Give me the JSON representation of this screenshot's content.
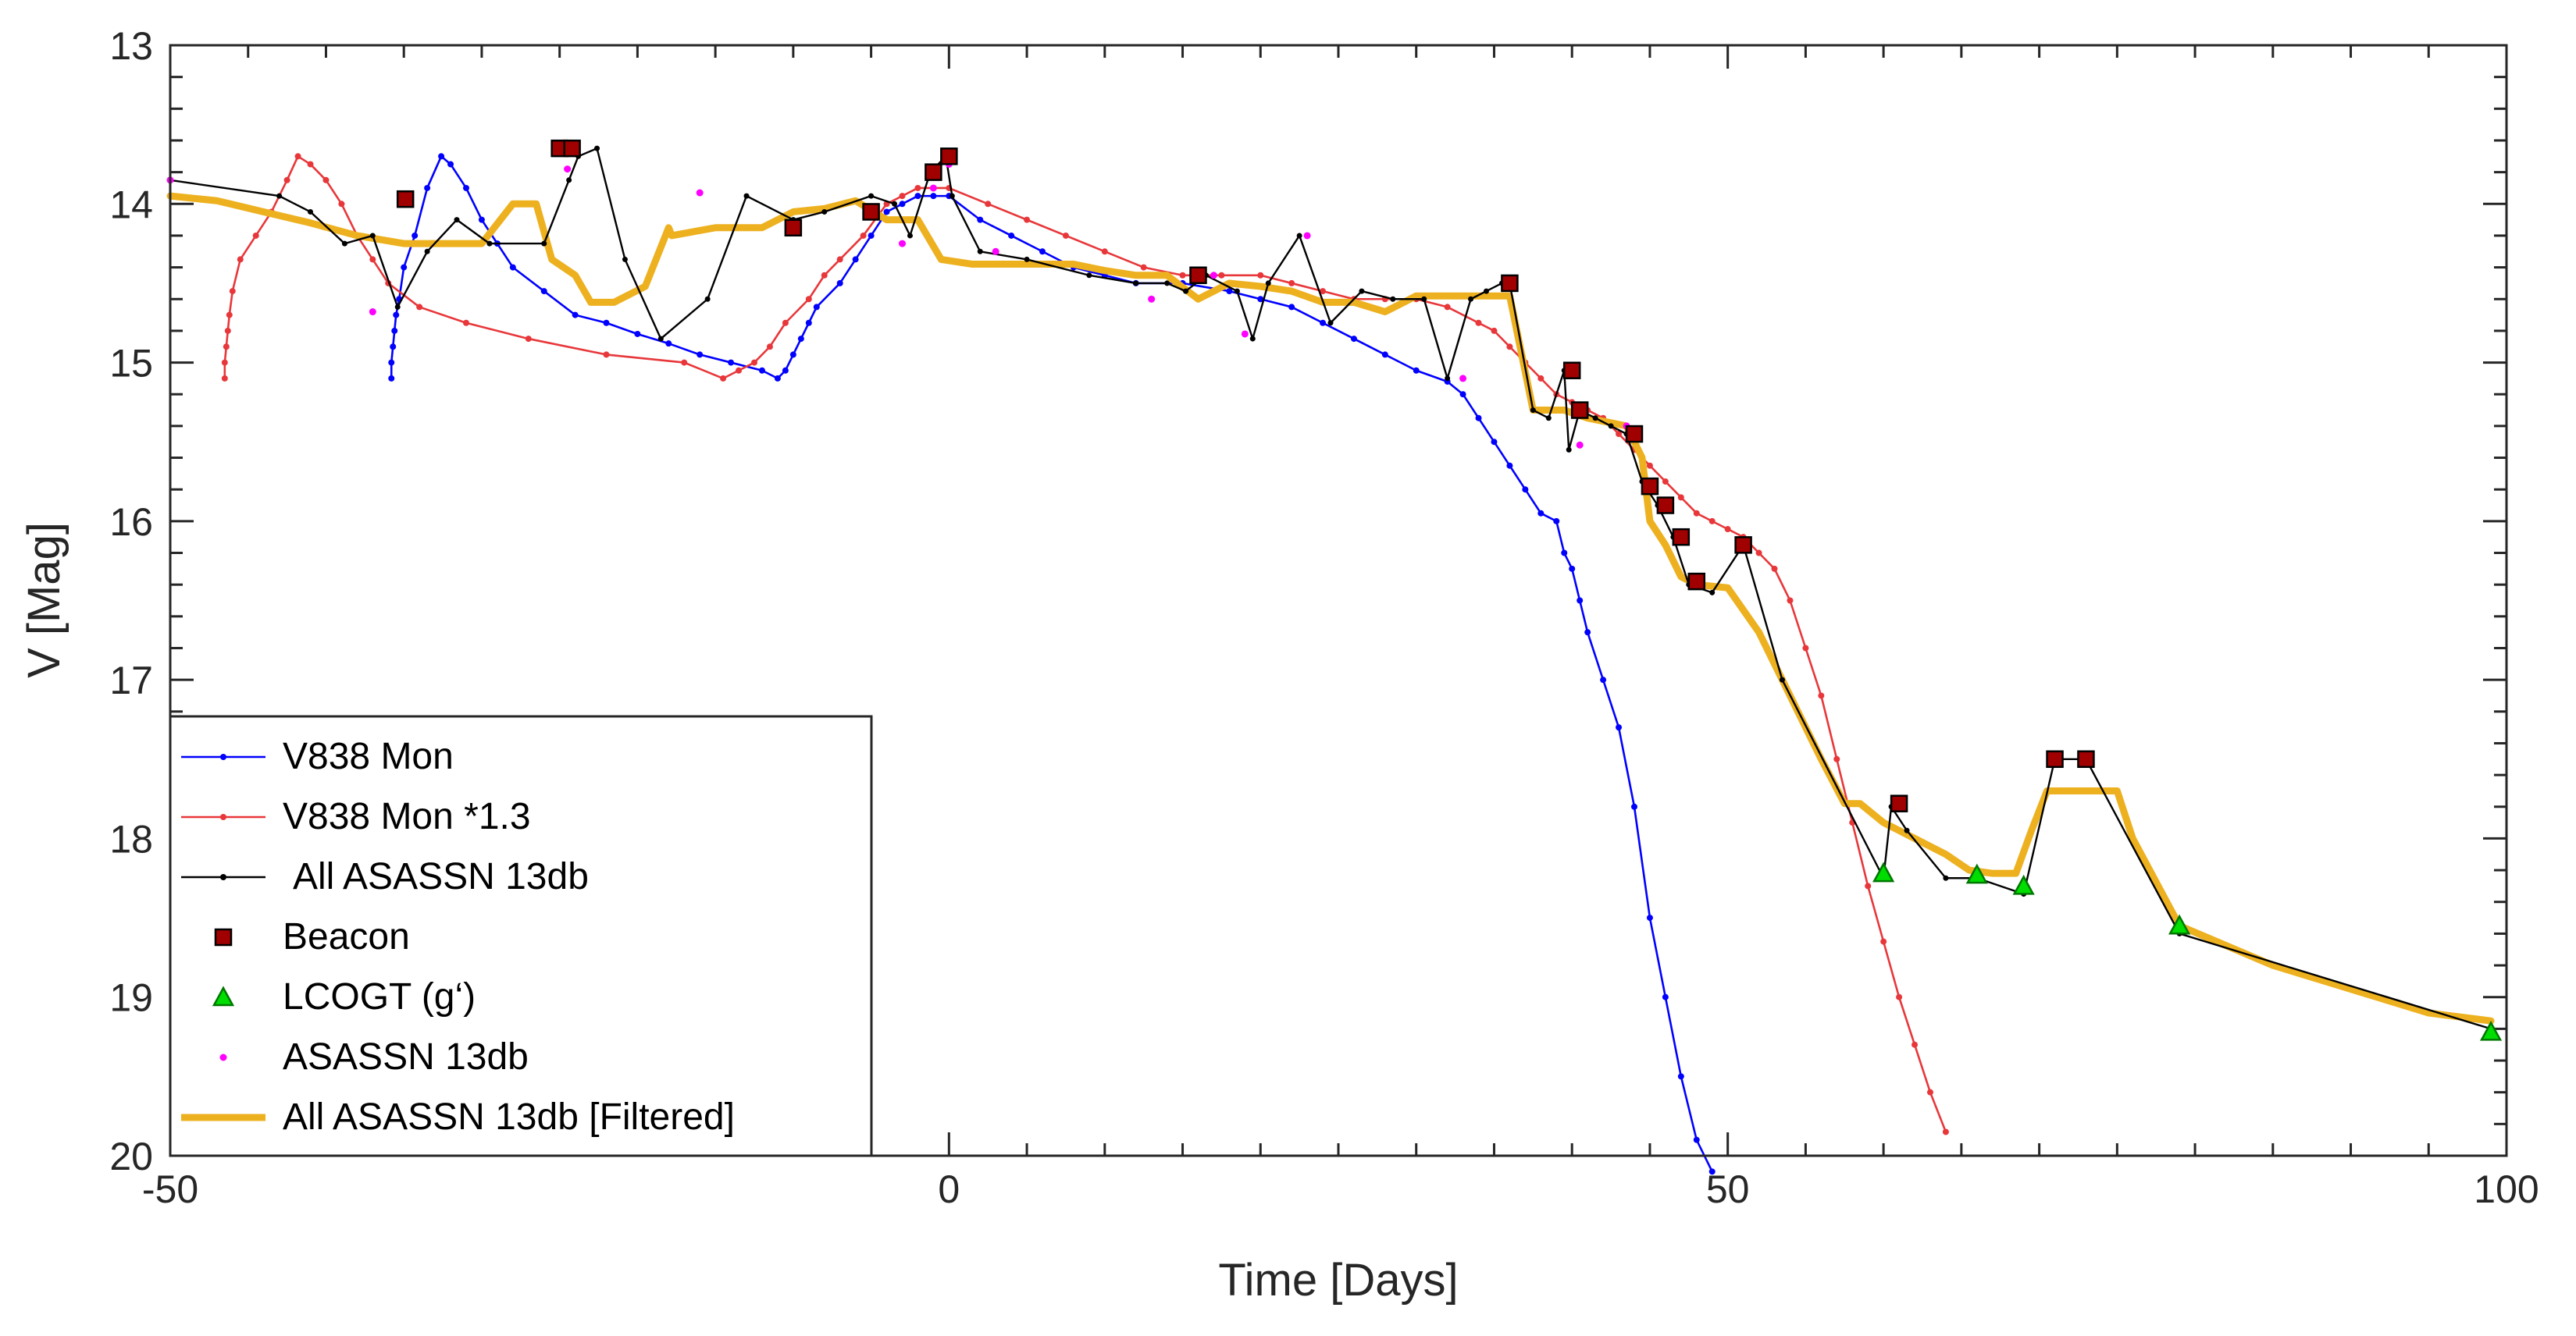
{
  "chart_data": {
    "type": "line",
    "title": "",
    "xlabel": "Time [Days]",
    "ylabel": "V [Mag]",
    "xlim": [
      -50,
      100
    ],
    "ylim": [
      13,
      20
    ],
    "y_reversed": true,
    "x_ticks": [
      -50,
      0,
      50,
      100
    ],
    "y_ticks": [
      13,
      14,
      15,
      16,
      17,
      18,
      19,
      20
    ],
    "grid": false,
    "legend_position": "bottom-left",
    "colors": {
      "v838": "#0000ff",
      "v838_scaled": "#e8373a",
      "all_asassn": "#000000",
      "beacon_fill": "#a00000",
      "lcogt_fill": "#00dd00",
      "asassn_points": "#ff00ff",
      "filtered": "#edb120"
    },
    "series": [
      {
        "name": "V838 Mon",
        "key": "v838",
        "style": "line-dot",
        "x": [
          -35.8,
          -35.8,
          -35.7,
          -35.6,
          -35.5,
          -35.3,
          -35.0,
          -34.3,
          -33.5,
          -32.6,
          -32.0,
          -31.0,
          -30.0,
          -29.0,
          -28.0,
          -26.0,
          -24.0,
          -22.0,
          -20.0,
          -18.0,
          -16.0,
          -14.0,
          -12.0,
          -11.0,
          -10.5,
          -10.0,
          -9.5,
          -9.0,
          -8.5,
          -7.0,
          -6.0,
          -5.0,
          -4.0,
          -3.0,
          -2.0,
          -1.0,
          0.0,
          2.0,
          4.0,
          6.0,
          8.0,
          10.0,
          12.0,
          15.0,
          18.0,
          20.0,
          22.0,
          24.0,
          26.0,
          28.0,
          30.0,
          32.0,
          33.0,
          34.0,
          35.0,
          36.0,
          37.0,
          38.0,
          39.0,
          39.5,
          40.0,
          40.5,
          41.0,
          42.0,
          43.0,
          44.0,
          45.0,
          46.0,
          47.0,
          48.0,
          49.0
        ],
        "y": [
          15.1,
          15.0,
          14.9,
          14.8,
          14.7,
          14.6,
          14.4,
          14.2,
          13.9,
          13.7,
          13.75,
          13.9,
          14.1,
          14.25,
          14.4,
          14.55,
          14.7,
          14.75,
          14.82,
          14.88,
          14.95,
          15.0,
          15.05,
          15.1,
          15.05,
          14.95,
          14.85,
          14.75,
          14.65,
          14.5,
          14.35,
          14.2,
          14.05,
          14.0,
          13.95,
          13.95,
          13.95,
          14.1,
          14.2,
          14.3,
          14.4,
          14.45,
          14.5,
          14.5,
          14.55,
          14.6,
          14.65,
          14.75,
          14.85,
          14.95,
          15.05,
          15.12,
          15.2,
          15.35,
          15.5,
          15.65,
          15.8,
          15.95,
          16.0,
          16.2,
          16.3,
          16.5,
          16.7,
          17.0,
          17.3,
          17.8,
          18.5,
          19.0,
          19.5,
          19.9,
          20.1
        ]
      },
      {
        "name": "V838 Mon *1.3",
        "key": "v838_scaled",
        "style": "line-dot",
        "x": [
          -46.5,
          -46.5,
          -46.4,
          -46.3,
          -46.2,
          -46.0,
          -45.5,
          -44.5,
          -43.5,
          -42.5,
          -41.8,
          -41.0,
          -40.0,
          -39.0,
          -38.0,
          -37.0,
          -36.0,
          -34.0,
          -31.0,
          -27.0,
          -22.0,
          -17.0,
          -14.5,
          -13.5,
          -12.5,
          -11.5,
          -10.5,
          -9.0,
          -8.0,
          -7.0,
          -5.5,
          -4.0,
          -3.0,
          -2.0,
          0.0,
          2.5,
          5.0,
          7.5,
          10.0,
          12.5,
          15.0,
          17.5,
          20.0,
          22.0,
          24.0,
          26.0,
          28.0,
          30.0,
          32.0,
          34.0,
          35.0,
          36.0,
          37.0,
          38.0,
          39.0,
          40.0,
          41.0,
          42.0,
          43.0,
          44.0,
          45.0,
          46.0,
          47.0,
          48.0,
          49.0,
          50.0,
          51.0,
          52.0,
          53.0,
          54.0,
          55.0,
          56.0,
          57.0,
          58.0,
          59.0,
          60.0,
          61.0,
          62.0,
          63.0,
          64.0
        ],
        "y": [
          15.1,
          15.0,
          14.9,
          14.8,
          14.7,
          14.55,
          14.35,
          14.2,
          14.05,
          13.85,
          13.7,
          13.75,
          13.85,
          14.0,
          14.2,
          14.35,
          14.5,
          14.65,
          14.75,
          14.85,
          14.95,
          15.0,
          15.1,
          15.05,
          15.0,
          14.9,
          14.75,
          14.6,
          14.45,
          14.35,
          14.2,
          14.0,
          13.95,
          13.9,
          13.9,
          14.0,
          14.1,
          14.2,
          14.3,
          14.4,
          14.45,
          14.45,
          14.45,
          14.5,
          14.55,
          14.6,
          14.6,
          14.6,
          14.65,
          14.75,
          14.8,
          14.9,
          15.0,
          15.1,
          15.2,
          15.25,
          15.3,
          15.35,
          15.45,
          15.55,
          15.65,
          15.75,
          15.85,
          15.95,
          16.0,
          16.05,
          16.1,
          16.2,
          16.3,
          16.5,
          16.8,
          17.1,
          17.5,
          17.9,
          18.3,
          18.65,
          19.0,
          19.3,
          19.6,
          19.85
        ]
      },
      {
        "name": "All ASASSN 13db",
        "key": "all_asassn",
        "style": "line-dot",
        "x": [
          -50.0,
          -43.0,
          -41.0,
          -38.8,
          -37.0,
          -35.4,
          -33.5,
          -31.6,
          -29.5,
          -26.0,
          -24.4,
          -23.8,
          -22.6,
          -20.8,
          -18.5,
          -15.5,
          -13.0,
          -10.0,
          -8.0,
          -5.0,
          -3.5,
          -2.5,
          -1.2,
          -0.2,
          0.2,
          2.0,
          5.0,
          9.0,
          12.0,
          14.0,
          15.2,
          16.5,
          18.5,
          19.5,
          20.5,
          22.5,
          24.5,
          26.5,
          28.5,
          30.5,
          32.0,
          33.5,
          34.5,
          35.5,
          36.0,
          37.5,
          38.5,
          39.5,
          39.8,
          40.5,
          41.5,
          42.5,
          43.5,
          44.5,
          45.5,
          46.5,
          47.5,
          49.0,
          51.0,
          53.5,
          60.0,
          60.5,
          61.5,
          64.0,
          66.0,
          69.0,
          71.0,
          73.0,
          79.0,
          99.0
        ],
        "y": [
          13.85,
          13.95,
          14.05,
          14.25,
          14.2,
          14.65,
          14.3,
          14.1,
          14.25,
          14.25,
          13.85,
          13.7,
          13.65,
          14.35,
          14.85,
          14.6,
          13.95,
          14.1,
          14.05,
          13.95,
          14.0,
          14.2,
          13.8,
          13.7,
          13.95,
          14.3,
          14.35,
          14.45,
          14.5,
          14.5,
          14.55,
          14.45,
          14.55,
          14.85,
          14.5,
          14.2,
          14.75,
          14.55,
          14.6,
          14.6,
          15.1,
          14.6,
          14.55,
          14.5,
          14.5,
          15.3,
          15.35,
          15.05,
          15.55,
          15.3,
          15.35,
          15.4,
          15.45,
          15.75,
          15.9,
          16.1,
          16.4,
          16.45,
          16.15,
          17.0,
          18.25,
          17.8,
          17.95,
          18.25,
          18.25,
          18.35,
          17.5,
          17.5,
          18.6,
          19.2
        ]
      },
      {
        "name": "Beacon",
        "key": "beacon",
        "style": "square",
        "x": [
          -34.9,
          -25.0,
          -24.2,
          -10.0,
          -5.0,
          -1.0,
          0.0,
          16.0,
          36.0,
          40.0,
          40.5,
          44.0,
          45.0,
          46.0,
          47.0,
          48.0,
          51.0,
          61.0,
          71.0,
          73.0
        ],
        "y": [
          13.97,
          13.65,
          13.65,
          14.15,
          14.05,
          13.8,
          13.7,
          14.45,
          14.5,
          15.05,
          15.3,
          15.45,
          15.78,
          15.9,
          16.1,
          16.38,
          16.15,
          17.78,
          17.5,
          17.5
        ]
      },
      {
        "name": "LCOGT (g‘)",
        "key": "lcogt",
        "style": "triangle",
        "x": [
          60.0,
          66.0,
          69.0,
          79.0,
          99.0
        ],
        "y": [
          18.22,
          18.23,
          18.3,
          18.55,
          19.22
        ]
      },
      {
        "name": "ASASSN 13db",
        "key": "asassn_points",
        "style": "dot",
        "x": [
          -50.0,
          -37.0,
          -25.0,
          -24.5,
          -16.0,
          -5.0,
          -3.0,
          -1.0,
          0.0,
          3.0,
          13.0,
          17.0,
          19.0,
          23.0,
          33.0,
          40.0,
          40.5,
          43.5
        ],
        "y": [
          13.85,
          14.68,
          13.68,
          13.78,
          13.93,
          14.05,
          14.25,
          13.9,
          13.75,
          14.3,
          14.6,
          14.45,
          14.82,
          14.2,
          15.1,
          15.05,
          15.52,
          15.4
        ]
      },
      {
        "name": "All ASASSN 13db [Filtered]",
        "key": "filtered",
        "style": "thick-line",
        "x": [
          -50.0,
          -47.0,
          -44.0,
          -41.0,
          -38.0,
          -35.0,
          -30.0,
          -28.0,
          -26.5,
          -25.5,
          -24.0,
          -23.0,
          -21.5,
          -19.5,
          -18.0,
          -17.8,
          -15.0,
          -12.0,
          -10.0,
          -8.0,
          -6.0,
          -4.0,
          -2.0,
          -0.5,
          1.5,
          4.0,
          8.0,
          10.0,
          12.0,
          14.0,
          16.0,
          18.0,
          20.0,
          22.0,
          24.0,
          26.0,
          28.0,
          30.0,
          31.0,
          32.5,
          36.0,
          37.5,
          39.5,
          41.0,
          43.5,
          44.5,
          45.0,
          46.0,
          47.0,
          48.0,
          50.0,
          52.0,
          54.0,
          56.0,
          57.5,
          58.5,
          60.0,
          61.0,
          62.0,
          64.0,
          65.5,
          67.0,
          68.5,
          69.5,
          70.5,
          71.5,
          75.0,
          76.0,
          79.0,
          85.0,
          90.0,
          95.0,
          99.0
        ],
        "y": [
          13.95,
          13.98,
          14.05,
          14.12,
          14.2,
          14.25,
          14.25,
          14.0,
          14.0,
          14.35,
          14.45,
          14.62,
          14.62,
          14.52,
          14.15,
          14.2,
          14.15,
          14.15,
          14.05,
          14.03,
          13.98,
          14.1,
          14.1,
          14.35,
          14.38,
          14.38,
          14.38,
          14.42,
          14.45,
          14.45,
          14.6,
          14.5,
          14.52,
          14.55,
          14.62,
          14.62,
          14.68,
          14.58,
          14.58,
          14.58,
          14.58,
          15.3,
          15.3,
          15.35,
          15.4,
          15.6,
          16.0,
          16.15,
          16.35,
          16.4,
          16.42,
          16.7,
          17.1,
          17.5,
          17.78,
          17.78,
          17.9,
          17.95,
          18.0,
          18.1,
          18.2,
          18.22,
          18.22,
          17.95,
          17.7,
          17.7,
          17.7,
          18.0,
          18.55,
          18.8,
          18.95,
          19.1,
          19.15
        ]
      }
    ]
  }
}
